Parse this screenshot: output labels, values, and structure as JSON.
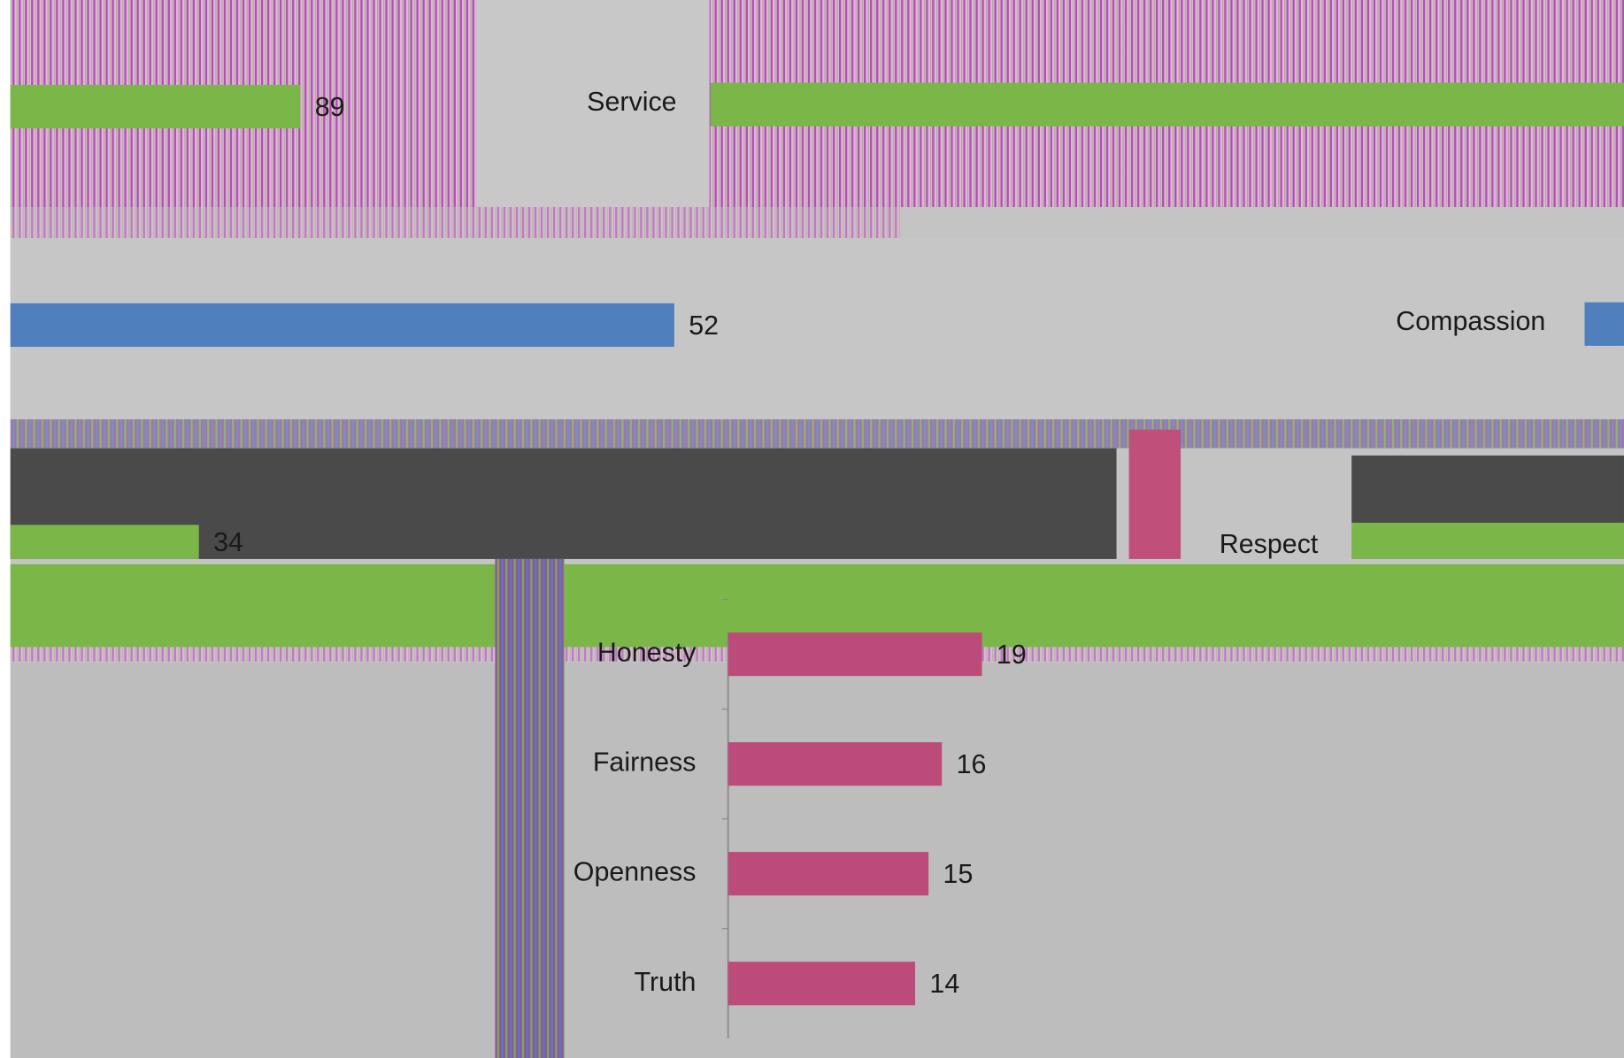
{
  "chart_data": [
    {
      "type": "bar",
      "orientation": "horizontal",
      "color": "#7ab648",
      "categories": [
        null
      ],
      "values": [
        89
      ]
    },
    {
      "type": "bar",
      "orientation": "horizontal",
      "color": "#4f7fbd",
      "categories": [
        null
      ],
      "values": [
        52
      ]
    },
    {
      "type": "bar",
      "orientation": "horizontal",
      "color": "#7ab648",
      "categories": [
        null
      ],
      "values": [
        34
      ]
    },
    {
      "type": "bar",
      "orientation": "horizontal",
      "color": "#bd4b7a",
      "categories": [
        "Honesty",
        "Fairness",
        "Openness",
        "Truth"
      ],
      "values": [
        19,
        16,
        15,
        14
      ]
    }
  ],
  "labels": [
    "Service",
    "Compassion",
    "Respect"
  ]
}
